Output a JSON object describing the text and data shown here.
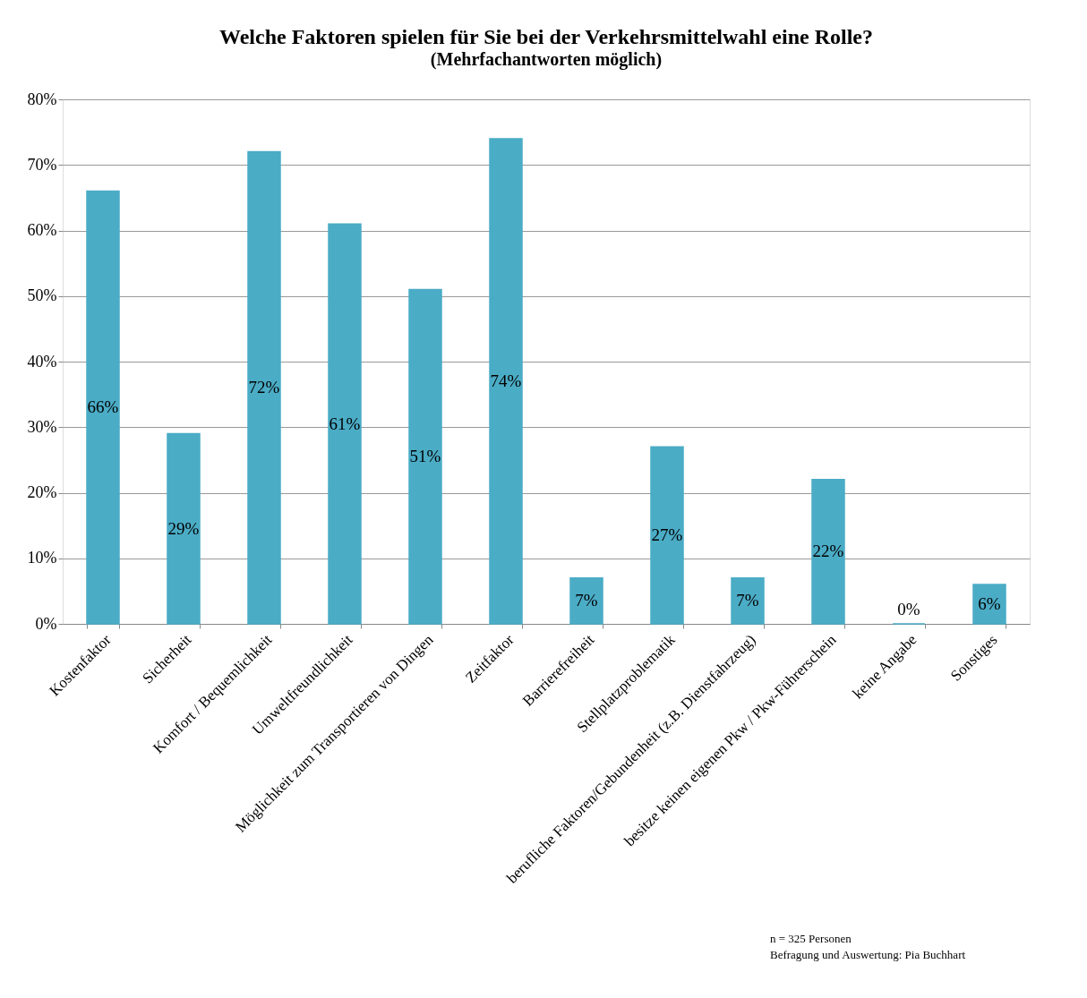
{
  "chart_data": {
    "type": "bar",
    "title": "Welche Faktoren spielen für Sie bei der Verkehrsmittelwahl eine Rolle?",
    "subtitle": "(Mehrfachantworten möglich)",
    "categories": [
      "Kostenfaktor",
      "Sicherheit",
      "Komfort / Bequemlichkeit",
      "Umweltfreundlichkeit",
      "Möglichkeit zum Transportieren von Dingen",
      "Zeitfaktor",
      "Barrierefreiheit",
      "Stellplatzproblematik",
      "berufliche Faktoren/Gebundenheit (z.B. Dienstfahrzeug)",
      "besitze keinen eigenen Pkw / Pkw-Führerschein",
      "keine Angabe",
      "Sonstiges"
    ],
    "values": [
      66,
      29,
      72,
      61,
      51,
      74,
      7,
      27,
      7,
      22,
      0,
      6
    ],
    "color": "#4bacc6",
    "ylim": [
      0,
      80
    ],
    "yticks": [
      {
        "value": 0,
        "label": "0%"
      },
      {
        "value": 10,
        "label": "10%"
      },
      {
        "value": 20,
        "label": "20%"
      },
      {
        "value": 30,
        "label": "30%"
      },
      {
        "value": 40,
        "label": "40%"
      },
      {
        "value": 50,
        "label": "50%"
      },
      {
        "value": 60,
        "label": "60%"
      },
      {
        "value": 70,
        "label": "70%"
      },
      {
        "value": 80,
        "label": "80%"
      }
    ],
    "value_labels": [
      "66%",
      "29%",
      "72%",
      "61%",
      "51%",
      "74%",
      "7%",
      "27%",
      "7%",
      "22%",
      "0%",
      "6%"
    ],
    "grid": "y",
    "annotations": [
      "n = 325 Personen",
      "Befragung und Auswertung: Pia Buchhart"
    ]
  }
}
